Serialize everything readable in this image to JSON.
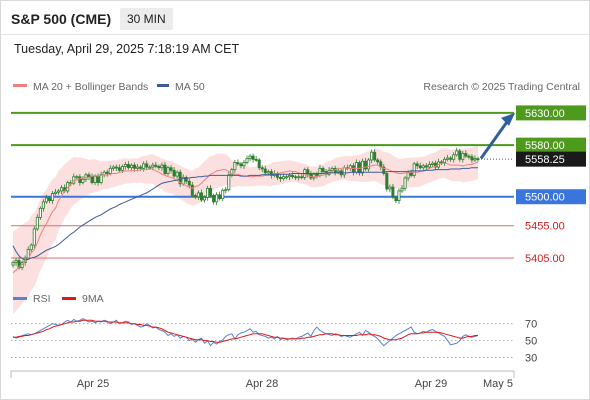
{
  "header": {
    "title": "S&P 500 (CME)",
    "timeframe": "30 MIN"
  },
  "datetime": "Tuesday, April 29, 2025 7:18:19 AM CET",
  "legend": {
    "ma20": "MA 20 + Bollinger Bands",
    "ma50": "MA 50",
    "credit": "Research © 2025 Trading Central",
    "rsi": "RSI",
    "rsi_ma": "9MA"
  },
  "colors": {
    "ma20": "#f08080",
    "ma50": "#3c5a9a",
    "band_fill": "#fcdada",
    "resistance": "#4d9a1c",
    "support": "#3a75dc",
    "target": "#e06c6c",
    "candle": "#2f7d2f",
    "arrow": "#2f5f9e",
    "rsi": "#5a7fd6",
    "rsi_ma": "#e01818"
  },
  "chart_data": {
    "type": "candlestick",
    "x_labels": [
      "Apr 25",
      "Apr 28",
      "Apr 29",
      "May 5"
    ],
    "y_range": [
      5360,
      5650
    ],
    "last_price": "5558.25",
    "levels": [
      {
        "label": "5630.00",
        "value": 5630,
        "kind": "resistance",
        "style": "box"
      },
      {
        "label": "5580.00",
        "value": 5580,
        "kind": "resistance",
        "style": "box"
      },
      {
        "label": "5558.25",
        "value": 5558.25,
        "kind": "last",
        "style": "box"
      },
      {
        "label": "5500.00",
        "value": 5500,
        "kind": "support",
        "style": "box"
      },
      {
        "label": "5455.00",
        "value": 5455,
        "kind": "target",
        "style": "text"
      },
      {
        "label": "5405.00",
        "value": 5405,
        "kind": "target",
        "style": "text"
      }
    ],
    "forecast": {
      "from": 5558,
      "to": 5630
    },
    "price_series": [
      5398,
      5401,
      5390,
      5398,
      5405,
      5418,
      5425,
      5450,
      5468,
      5482,
      5492,
      5498,
      5494,
      5505,
      5507,
      5509,
      5514,
      5509,
      5522,
      5521,
      5531,
      5531,
      5522,
      5527,
      5534,
      5531,
      5522,
      5532,
      5522,
      5534,
      5538,
      5536,
      5544,
      5546,
      5545,
      5541,
      5547,
      5550,
      5545,
      5549,
      5544,
      5546,
      5544,
      5551,
      5546,
      5546,
      5549,
      5547,
      5545,
      5549,
      5536,
      5545,
      5541,
      5532,
      5538,
      5520,
      5530,
      5524,
      5518,
      5502,
      5500,
      5506,
      5495,
      5499,
      5513,
      5502,
      5492,
      5503,
      5497,
      5510,
      5511,
      5534,
      5542,
      5553,
      5551,
      5548,
      5553,
      5559,
      5563,
      5558,
      5557,
      5545,
      5543,
      5537,
      5539,
      5533,
      5536,
      5530,
      5528,
      5531,
      5531,
      5533,
      5531,
      5530,
      5531,
      5530,
      5542,
      5535,
      5529,
      5535,
      5533,
      5544,
      5539,
      5535,
      5541,
      5544,
      5538,
      5540,
      5534,
      5545,
      5544,
      5548,
      5538,
      5553,
      5537,
      5555,
      5543,
      5557,
      5569,
      5557,
      5554,
      5546,
      5536,
      5512,
      5515,
      5499,
      5494,
      5509,
      5513,
      5529,
      5537,
      5533,
      5551,
      5548,
      5545,
      5548,
      5546,
      5550,
      5552,
      5546,
      5554,
      5553,
      5558,
      5560,
      5558,
      5565,
      5571,
      5558,
      5567,
      5563,
      5562,
      5557,
      5559,
      5558
    ],
    "ma20": [
      5382,
      5386,
      5391,
      5395,
      5400,
      5403,
      5413,
      5418,
      5428,
      5441,
      5450,
      5458,
      5468,
      5477,
      5482,
      5494,
      5501,
      5509,
      5514,
      5520,
      5525,
      5526,
      5528,
      5529,
      5530,
      5530,
      5532,
      5533,
      5532,
      5533,
      5534,
      5533,
      5535,
      5536,
      5536,
      5538,
      5539,
      5540,
      5540,
      5540,
      5541,
      5540,
      5542,
      5542,
      5542,
      5543,
      5543,
      5540,
      5538,
      5535,
      5533,
      5531,
      5530,
      5528,
      5525,
      5522,
      5520,
      5517,
      5515,
      5513,
      5516,
      5517,
      5521,
      5526,
      5530,
      5535,
      5537,
      5540,
      5541,
      5542,
      5542,
      5539,
      5536,
      5535,
      5535,
      5533,
      5532,
      5532,
      5531,
      5531,
      5532,
      5532,
      5532,
      5533,
      5533,
      5534,
      5536,
      5536,
      5537,
      5538,
      5539,
      5540,
      5539,
      5539,
      5537,
      5536,
      5535,
      5533,
      5531,
      5531,
      5531,
      5533,
      5533,
      5536,
      5538,
      5540,
      5542,
      5543,
      5544,
      5545,
      5544,
      5544,
      5544,
      5544,
      5544,
      5545,
      5546,
      5547,
      5548,
      5549,
      5549,
      5546,
      5544,
      5543,
      5541,
      5539,
      5537,
      5536,
      5536,
      5537,
      5537,
      5538,
      5538,
      5538,
      5539,
      5540,
      5542,
      5544,
      5546,
      5547,
      5550,
      5552,
      5552,
      5551,
      5549,
      5549,
      5549,
      5549,
      5548,
      5549,
      5550,
      5550,
      5552,
      5554
    ],
    "ma50": [
      5424,
      5415,
      5408,
      5404,
      5402,
      5403,
      5405,
      5406,
      5408,
      5411,
      5414,
      5417,
      5419,
      5421,
      5423,
      5426,
      5430,
      5434,
      5438,
      5442,
      5445,
      5449,
      5453,
      5456,
      5459,
      5462,
      5465,
      5468,
      5470,
      5472,
      5475,
      5478,
      5481,
      5483,
      5485,
      5488,
      5490,
      5492,
      5494,
      5496,
      5498,
      5500,
      5502,
      5504,
      5506,
      5509,
      5512,
      5515,
      5518,
      5521,
      5522,
      5523,
      5524,
      5525,
      5526,
      5527,
      5528,
      5529,
      5529,
      5530,
      5530,
      5531,
      5531,
      5532,
      5532,
      5533,
      5533,
      5533,
      5533,
      5533,
      5533,
      5533,
      5533,
      5533,
      5533,
      5532,
      5532,
      5532,
      5533,
      5533,
      5533,
      5533,
      5534,
      5534,
      5534,
      5534,
      5535,
      5535,
      5535,
      5535,
      5535,
      5535,
      5536,
      5536,
      5536,
      5536,
      5536,
      5536,
      5536,
      5536,
      5536,
      5536,
      5536,
      5537,
      5537,
      5537,
      5537,
      5537,
      5537,
      5537,
      5537,
      5538,
      5538,
      5538,
      5538,
      5538,
      5538,
      5538,
      5538,
      5538,
      5538,
      5538,
      5538,
      5539,
      5539,
      5539,
      5539,
      5539,
      5539,
      5539,
      5539,
      5540,
      5540,
      5540,
      5540,
      5540,
      5541,
      5541,
      5541,
      5542,
      5542,
      5542,
      5542,
      5542,
      5543,
      5543,
      5543,
      5543,
      5544,
      5544,
      5544,
      5545,
      5545,
      5545
    ],
    "bb_width": [
      64,
      63,
      62,
      61,
      60,
      59,
      58,
      57,
      56,
      55,
      55,
      53,
      52,
      50,
      49,
      46,
      44,
      42,
      40,
      38,
      37,
      35,
      33,
      31,
      29,
      27,
      26,
      25,
      24,
      23,
      22,
      22,
      21,
      21,
      20,
      20,
      20,
      20,
      19,
      19,
      19,
      19,
      20,
      21,
      22,
      23,
      23,
      24,
      24,
      24,
      25,
      25,
      25,
      25,
      26,
      26,
      26,
      27,
      27,
      27,
      28,
      28,
      29,
      29,
      29,
      28,
      27,
      27,
      26,
      25,
      24,
      23,
      21,
      20,
      18,
      17,
      16,
      16,
      15,
      15,
      15,
      15,
      15,
      16,
      17,
      18,
      18,
      18,
      18,
      18,
      17,
      17,
      16,
      16,
      16,
      16,
      16,
      16,
      16,
      16,
      16,
      17,
      17,
      17,
      17,
      17,
      18,
      18,
      18,
      18,
      19,
      19,
      20,
      20,
      21,
      22,
      23,
      24,
      24,
      25,
      26,
      26,
      26,
      26,
      26,
      25,
      24,
      23,
      23,
      23,
      23,
      23,
      23,
      23,
      23,
      22,
      22,
      22,
      22,
      22,
      22,
      23,
      23,
      24,
      24,
      25,
      25,
      25,
      26,
      26,
      26,
      26,
      26,
      26
    ],
    "rsi": {
      "y_ticks": [
        "70",
        "50",
        "30"
      ],
      "y_range": [
        20,
        85
      ],
      "series": [
        55,
        53,
        54,
        56,
        57,
        58,
        57,
        58,
        60,
        62,
        64,
        66,
        68,
        70,
        69,
        68,
        69,
        72,
        74,
        72,
        75,
        73,
        74,
        76,
        74,
        72,
        73,
        71,
        73,
        72,
        74,
        73,
        70,
        72,
        74,
        70,
        71,
        73,
        72,
        69,
        70,
        68,
        66,
        67,
        70,
        68,
        65,
        66,
        63,
        62,
        60,
        56,
        58,
        55,
        57,
        53,
        55,
        54,
        50,
        52,
        48,
        51,
        53,
        47,
        50,
        44,
        48,
        46,
        49,
        51,
        55,
        57,
        58,
        52,
        57,
        59,
        60,
        62,
        64,
        60,
        61,
        57,
        56,
        55,
        53,
        54,
        52,
        55,
        51,
        53,
        51,
        52,
        53,
        52,
        54,
        55,
        57,
        59,
        55,
        62,
        66,
        62,
        60,
        58,
        57,
        56,
        58,
        57,
        55,
        56,
        55,
        54,
        56,
        58,
        60,
        56,
        62,
        60,
        57,
        55,
        52,
        48,
        44,
        47,
        50,
        53,
        56,
        58,
        60,
        62,
        64,
        66,
        60,
        58,
        59,
        61,
        60,
        62,
        63,
        61,
        59,
        57,
        55,
        50,
        45,
        46,
        47,
        50,
        55,
        57,
        55,
        54,
        55,
        56
      ],
      "ma9": [
        54,
        54,
        55,
        55,
        56,
        56,
        57,
        58,
        59,
        60,
        61,
        63,
        64,
        66,
        67,
        68,
        69,
        70,
        71,
        72,
        72,
        73,
        73,
        74,
        74,
        74,
        74,
        73,
        73,
        73,
        73,
        72,
        72,
        72,
        72,
        71,
        71,
        71,
        71,
        70,
        70,
        69,
        69,
        68,
        68,
        67,
        66,
        66,
        65,
        64,
        62,
        60,
        59,
        58,
        57,
        56,
        55,
        54,
        53,
        52,
        51,
        51,
        51,
        50,
        50,
        49,
        49,
        48,
        48,
        49,
        50,
        51,
        52,
        52,
        53,
        54,
        55,
        56,
        57,
        58,
        58,
        58,
        58,
        57,
        56,
        55,
        54,
        54,
        53,
        53,
        52,
        52,
        52,
        52,
        52,
        53,
        53,
        54,
        54,
        55,
        56,
        57,
        57,
        58,
        58,
        58,
        57,
        57,
        56,
        56,
        56,
        56,
        56,
        56,
        57,
        57,
        57,
        58,
        57,
        57,
        56,
        55,
        53,
        52,
        51,
        51,
        51,
        52,
        53,
        55,
        57,
        58,
        58,
        58,
        59,
        59,
        60,
        60,
        60,
        60,
        60,
        59,
        58,
        57,
        56,
        55,
        54,
        53,
        53,
        54,
        55,
        55,
        56,
        56
      ]
    }
  }
}
